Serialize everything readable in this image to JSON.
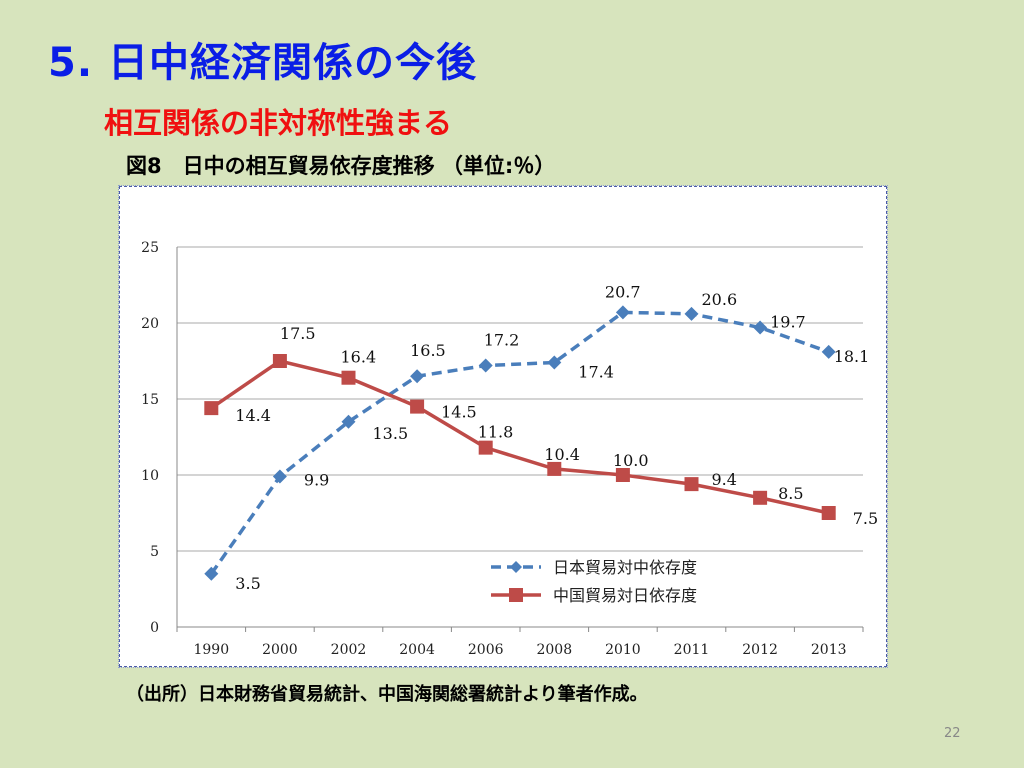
{
  "slide": {
    "title": "5. 日中経済関係の今後",
    "subtitle": "相互関係の非対称性強まる",
    "figure_title": "図8　日中の相互貿易依存度推移 （単位:％）",
    "source": "（出所）日本財務省貿易統計、中国海関総署統計より筆者作成。",
    "page_number": "22"
  },
  "colors": {
    "title": "#0a1ee6",
    "subtitle": "#f01010",
    "background": "#d7e4bd",
    "japan_series": "#4a7ebb",
    "china_series": "#be4b48"
  },
  "chart_data": {
    "type": "line",
    "title": "",
    "xlabel": "",
    "ylabel": "",
    "categories": [
      "1990",
      "2000",
      "2002",
      "2004",
      "2006",
      "2008",
      "2010",
      "2011",
      "2012",
      "2013"
    ],
    "ylim": [
      0,
      25
    ],
    "yticks": [
      "0",
      "5",
      "10",
      "15",
      "20",
      "25"
    ],
    "grid": true,
    "legend_placement": "bottom-center",
    "series": [
      {
        "name": "日本貿易対中依存度",
        "values": [
          3.5,
          9.9,
          13.5,
          16.5,
          17.2,
          17.4,
          20.7,
          20.6,
          19.7,
          18.1
        ],
        "labels": [
          "3.5",
          "9.9",
          "13.5",
          "16.5",
          "17.2",
          "17.4",
          "20.7",
          "20.6",
          "19.7",
          "18.1"
        ],
        "style": "dashed",
        "marker": "diamond",
        "color": "#4a7ebb"
      },
      {
        "name": "中国貿易対日依存度",
        "values": [
          14.4,
          17.5,
          16.4,
          14.5,
          11.8,
          10.4,
          10.0,
          9.4,
          8.5,
          7.5
        ],
        "labels": [
          "14.4",
          "17.5",
          "16.4",
          "14.5",
          "11.8",
          "10.4",
          "10.0",
          "9.4",
          "8.5",
          "7.5"
        ],
        "style": "solid",
        "marker": "square",
        "color": "#be4b48"
      }
    ]
  }
}
